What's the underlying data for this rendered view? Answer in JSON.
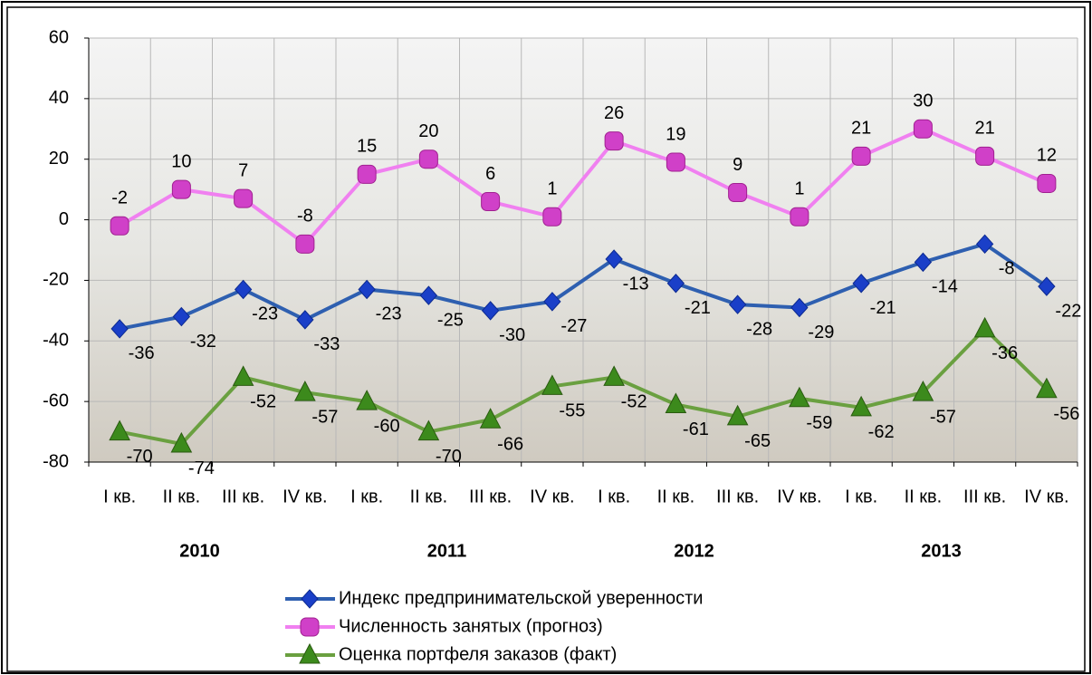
{
  "chart_data": {
    "type": "line",
    "categories": [
      "I кв.",
      "II кв.",
      "III кв.",
      "IV кв.",
      "I кв.",
      "II кв.",
      "III кв.",
      "IV кв.",
      "I кв.",
      "II кв.",
      "III кв.",
      "IV кв.",
      "I кв.",
      "II кв.",
      "III кв.",
      "IV кв."
    ],
    "year_groups": [
      "2010",
      "2011",
      "2012",
      "2013"
    ],
    "ylim": [
      -80,
      60
    ],
    "yticks": [
      -80,
      -60,
      -40,
      -20,
      0,
      20,
      40,
      60
    ],
    "grid": true,
    "series": [
      {
        "name": "Индекс предпринимательской уверенности",
        "color": "#2e5fb0",
        "marker": "diamond",
        "marker_color": "#1a3fc8",
        "values": [
          -36,
          -32,
          -23,
          -33,
          -23,
          -25,
          -30,
          -27,
          -13,
          -21,
          -28,
          -29,
          -21,
          -14,
          -8,
          -22
        ]
      },
      {
        "name": "Численность занятых (прогноз)",
        "color": "#f080f0",
        "marker": "square",
        "marker_color": "#d040c8",
        "values": [
          -2,
          10,
          7,
          -8,
          15,
          20,
          6,
          1,
          26,
          19,
          9,
          1,
          21,
          30,
          21,
          12
        ]
      },
      {
        "name": "Оценка портфеля заказов (факт)",
        "color": "#6aa040",
        "marker": "triangle",
        "marker_color": "#3c8a1c",
        "values": [
          -70,
          -74,
          -52,
          -57,
          -60,
          -70,
          -66,
          -55,
          -52,
          -61,
          -65,
          -59,
          -62,
          -57,
          -36,
          -56
        ]
      }
    ]
  }
}
